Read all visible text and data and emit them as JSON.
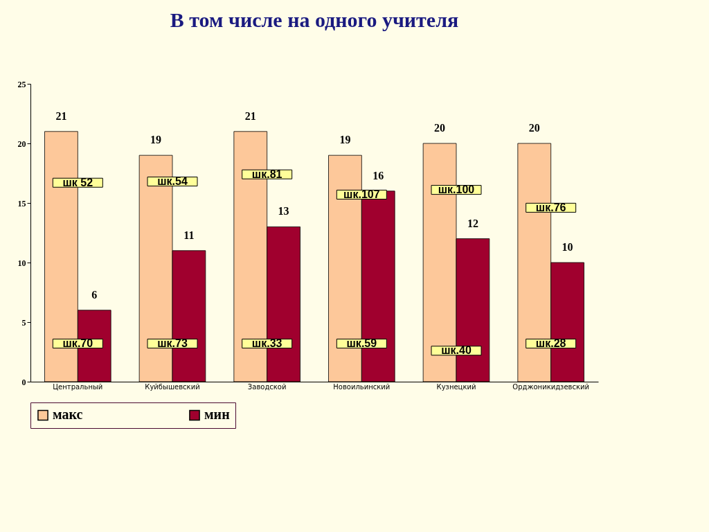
{
  "chart_data": {
    "type": "bar",
    "title": "В том числе на одного учителя",
    "categories": [
      "Центральный",
      "Куйбышевский",
      "Заводской",
      "Новоильинский",
      "Кузнецкий",
      "Орджоникидзевский"
    ],
    "series": [
      {
        "name": "макс",
        "color": "#fdc89a",
        "values": [
          21,
          19,
          21,
          19,
          20,
          20
        ]
      },
      {
        "name": "мин",
        "color": "#a0002e",
        "values": [
          6,
          11,
          13,
          16,
          12,
          10
        ]
      }
    ],
    "ylim": [
      0,
      25
    ],
    "yticks": [
      0,
      5,
      10,
      15,
      20,
      25
    ],
    "grid": false,
    "legend": "bottom",
    "data_labels": true,
    "annotations": [
      {
        "text": "шк 52",
        "x": "Центральный",
        "y": 16.7
      },
      {
        "text": "шк.54",
        "x": "Куйбышевский",
        "y": 16.8
      },
      {
        "text": "шк.81",
        "x": "Заводской",
        "y": 17.4
      },
      {
        "text": "шк.107",
        "x": "Новоильинский",
        "y": 15.7
      },
      {
        "text": "шк.100",
        "x": "Кузнецкий",
        "y": 16.1
      },
      {
        "text": "шк.76",
        "x": "Орджоникидзевский",
        "y": 14.6
      },
      {
        "text": "шк.70",
        "x": "Центральный",
        "y": 3.2
      },
      {
        "text": "шк.73",
        "x": "Куйбышевский",
        "y": 3.2
      },
      {
        "text": "шк.33",
        "x": "Заводской",
        "y": 3.2
      },
      {
        "text": "шк.59",
        "x": "Новоильинский",
        "y": 3.2
      },
      {
        "text": "шк.40",
        "x": "Кузнецкий",
        "y": 2.6
      },
      {
        "text": "шк.28",
        "x": "Орджоникидзевский",
        "y": 3.2
      }
    ]
  }
}
